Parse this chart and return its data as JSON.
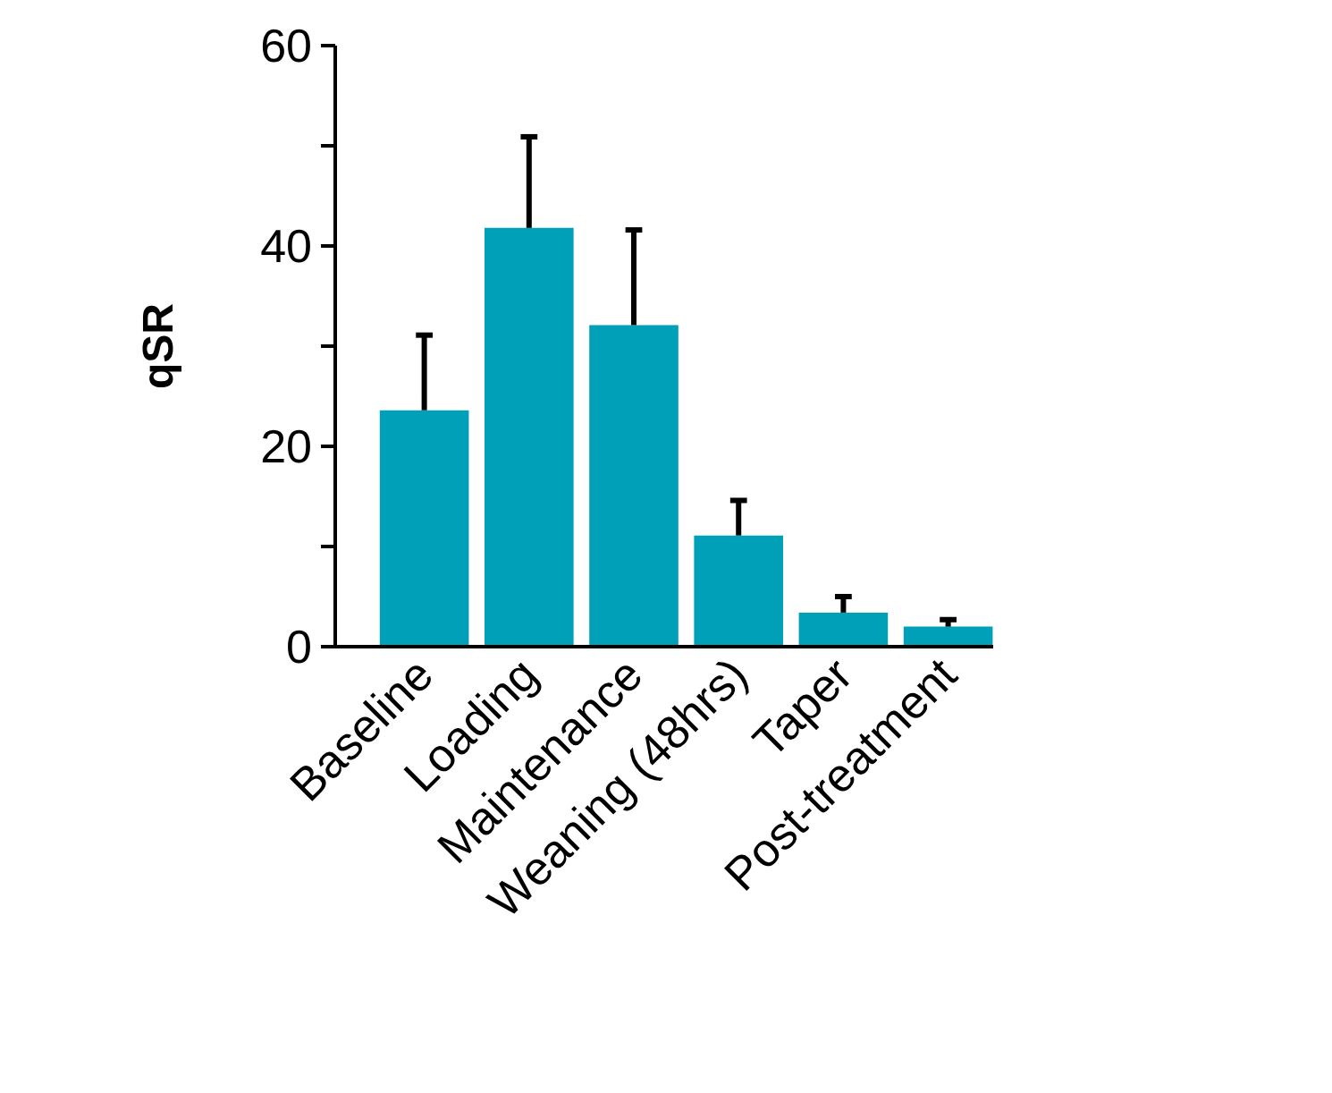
{
  "chart_data": {
    "type": "bar",
    "ylabel": "qSR",
    "categories": [
      "Baseline",
      "Loading",
      "Maintenance",
      "Weaning (48hrs)",
      "Taper",
      "Post-treatment"
    ],
    "values": [
      23.6,
      41.8,
      32.1,
      11.1,
      3.4,
      2.0
    ],
    "errors": [
      [
        23.6,
        31.1
      ],
      [
        41.8,
        50.9
      ],
      [
        32.1,
        41.6
      ],
      [
        11.1,
        14.6
      ],
      [
        3.4,
        5.0
      ],
      [
        2.0,
        2.7
      ]
    ],
    "color": "#00a0b8",
    "ylim": [
      0,
      60
    ],
    "yticks": [
      0,
      {
        "value": 10,
        "label": null
      },
      20,
      {
        "value": 30,
        "label": null
      },
      40,
      {
        "value": 50,
        "label": null
      },
      60
    ],
    "grid": false
  }
}
